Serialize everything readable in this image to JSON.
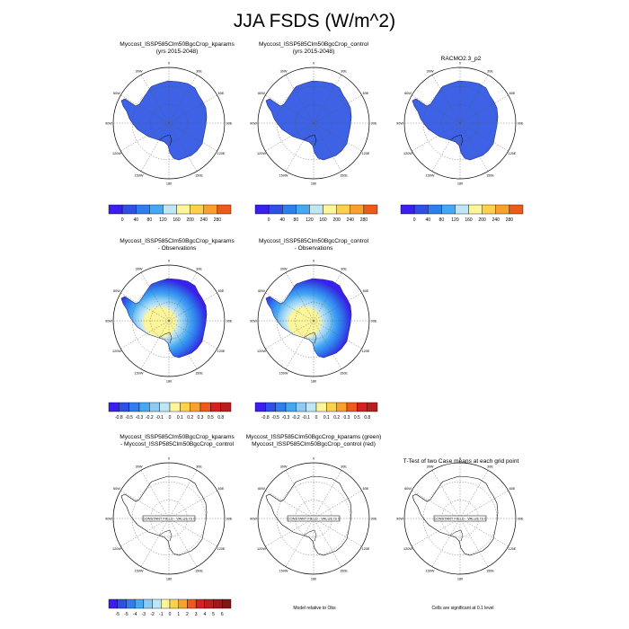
{
  "title": "JJA FSDS (W/m^2)",
  "colors": {
    "abs": [
      "#3a1ff0",
      "#2f4fe6",
      "#2f7ef0",
      "#45a8f2",
      "#bfe6f7",
      "#fdf59a",
      "#fdd14a",
      "#f9a12a",
      "#ef5a1c",
      "#d62020",
      "#b81e1e"
    ],
    "diff": [
      "#3a1ff0",
      "#2f4fe6",
      "#2f7ef0",
      "#45a8f2",
      "#8ccbf5",
      "#bfe6f7",
      "#fdf59a",
      "#fdd14a",
      "#f9a12a",
      "#ef5a1c",
      "#d62020",
      "#b81e1e"
    ],
    "land_abs": "#3d62e6",
    "ocean": "#ffffff"
  },
  "labels": {
    "abs": [
      "0",
      "40",
      "80",
      "120",
      "160",
      "200",
      "240",
      "280"
    ],
    "rel": [
      "-0.8",
      "-0.5",
      "-0.3",
      "-0.2",
      "-0.1",
      "0",
      "0.1",
      "0.2",
      "0.3",
      "0.5",
      "0.8"
    ],
    "diff": [
      "-5",
      "-5",
      "-4",
      "-3",
      "-2",
      "-1",
      "0",
      "1",
      "2",
      "3",
      "4",
      "5",
      "6"
    ]
  },
  "longitude_labels": [
    "0",
    "30E",
    "60E",
    "90E",
    "120E",
    "150E",
    "180",
    "150W",
    "120W",
    "90W",
    "60W",
    "30W"
  ],
  "panels": [
    {
      "id": "p1",
      "title_lines": [
        "Myccost_ISSP585Clm50BgcCrop_kparams",
        "(yrs 2015-2048)"
      ],
      "kind": "abs"
    },
    {
      "id": "p2",
      "title_lines": [
        "Myccost_ISSP585Clm50BgcCrop_control",
        "(yrs 2015-2048)"
      ],
      "kind": "abs"
    },
    {
      "id": "p3",
      "title_lines": [
        "RACMO2.3_p2"
      ],
      "kind": "abs"
    },
    {
      "id": "p4",
      "title_lines": [
        "Myccost_ISSP585Clm50BgcCrop_kparams",
        "- Observations"
      ],
      "kind": "rel"
    },
    {
      "id": "p5",
      "title_lines": [
        "Myccost_ISSP585Clm50BgcCrop_control",
        "- Observations"
      ],
      "kind": "rel"
    },
    {
      "id": "p6",
      "title_lines": [
        "Myccost_ISSP585Clm50BgcCrop_kparams",
        "- Myccost_ISSP585Clm50BgcCrop_control"
      ],
      "kind": "const"
    },
    {
      "id": "p7",
      "title_lines": [
        "Myccost_ISSP585Clm50BgcCrop_kparams (green)",
        "Myccost_ISSP585Clm50BgcCrop_control (red)"
      ],
      "kind": "const"
    },
    {
      "id": "p8",
      "title_lines": [
        "T-Test of two Case means at each grid point"
      ],
      "kind": "const"
    }
  ],
  "constant_field_label": "CONSTANT FIELD - VALUE IS 0",
  "notes": {
    "model_relative": "Model relative to Obs",
    "significance": "Cells are significant at 0.1 level"
  },
  "chart_data": {
    "type": "heatmap",
    "title": "JJA FSDS (W/m^2)",
    "projection": "south polar stereographic",
    "colorbars": {
      "absolute": {
        "levels": [
          0,
          40,
          80,
          120,
          160,
          200,
          240,
          280
        ]
      },
      "relative": {
        "levels": [
          -0.8,
          -0.5,
          -0.3,
          -0.2,
          -0.1,
          0,
          0.1,
          0.2,
          0.3,
          0.5,
          0.8
        ]
      },
      "difference": {
        "levels": [
          -5,
          -5,
          -4,
          -3,
          -2,
          -1,
          0,
          1,
          2,
          3,
          4,
          5,
          6
        ]
      }
    },
    "panels": [
      {
        "name": "Myccost_ISSP585Clm50BgcCrop_kparams (yrs 2015-2048)",
        "field": "near 0 W/m^2 over Antarctica"
      },
      {
        "name": "Myccost_ISSP585Clm50BgcCrop_control (yrs 2015-2048)",
        "field": "near 0 W/m^2 over Antarctica"
      },
      {
        "name": "RACMO2.3_p2",
        "field": "near 0 W/m^2 over Antarctica"
      },
      {
        "name": "kparams - Observations",
        "field": "relative difference, center ~0, coast down to -0.8"
      },
      {
        "name": "control - Observations",
        "field": "relative difference, center ~0, coast down to -0.8"
      },
      {
        "name": "kparams - control",
        "field": "constant 0"
      },
      {
        "name": "kparams vs control",
        "field": "constant 0"
      },
      {
        "name": "T-Test",
        "field": "constant 0"
      }
    ]
  }
}
